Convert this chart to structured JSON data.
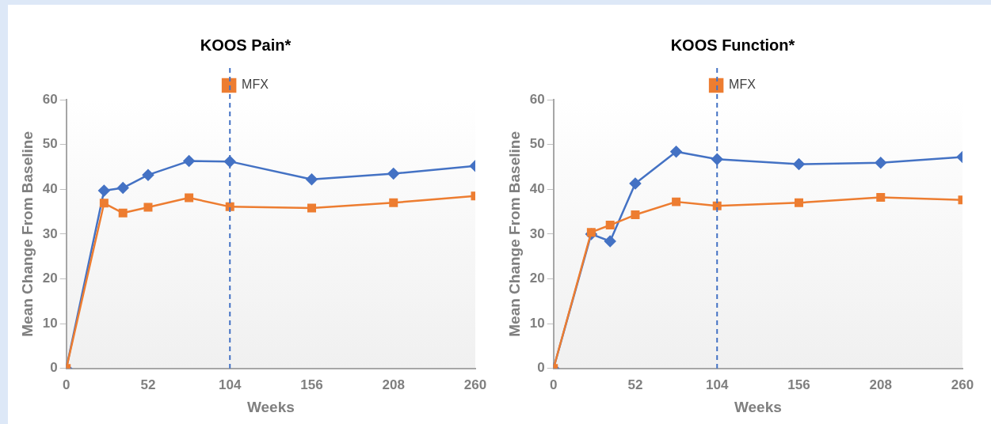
{
  "chart_data": [
    {
      "type": "line",
      "title": "KOOS Pain*",
      "xlabel": "Weeks",
      "ylabel": "Mean Change From Baseline",
      "x": [
        0,
        24,
        36,
        52,
        78,
        104,
        156,
        208,
        260
      ],
      "series": [
        {
          "color": "#4472c4",
          "marker": "diamond",
          "values": [
            0,
            39.7,
            40.3,
            43.2,
            46.3,
            46.2,
            42.2,
            43.5,
            45.2
          ]
        },
        {
          "name": "MFX",
          "color": "#ed7d31",
          "marker": "square",
          "values": [
            0,
            36.9,
            34.7,
            36.0,
            38.1,
            36.1,
            35.8,
            37.0,
            38.5
          ]
        }
      ],
      "xlim": [
        0,
        260
      ],
      "xticks": [
        0,
        52,
        104,
        156,
        208,
        260
      ],
      "ylim": [
        0,
        60
      ],
      "yticks": [
        0,
        10,
        20,
        30,
        40,
        50,
        60
      ],
      "ref_lines": [
        {
          "axis": "x",
          "value": 104,
          "color": "#4472c4",
          "line_style": "dashed"
        }
      ],
      "grid": false,
      "legend": "top",
      "line_style": "solid"
    },
    {
      "type": "line",
      "title": "KOOS Function*",
      "xlabel": "Weeks",
      "ylabel": "Mean Change From Baseline",
      "x": [
        0,
        24,
        36,
        52,
        78,
        104,
        156,
        208,
        260
      ],
      "series": [
        {
          "color": "#4472c4",
          "marker": "diamond",
          "values": [
            0,
            30.0,
            28.4,
            41.3,
            48.4,
            46.7,
            45.6,
            45.9,
            47.2
          ]
        },
        {
          "name": "MFX",
          "color": "#ed7d31",
          "marker": "square",
          "values": [
            0,
            30.4,
            32.0,
            34.3,
            37.2,
            36.3,
            37.0,
            38.2,
            37.6
          ]
        }
      ],
      "xlim": [
        0,
        260
      ],
      "xticks": [
        0,
        52,
        104,
        156,
        208,
        260
      ],
      "ylim": [
        0,
        60
      ],
      "yticks": [
        0,
        10,
        20,
        30,
        40,
        50,
        60
      ],
      "ref_lines": [
        {
          "axis": "x",
          "value": 104,
          "color": "#4472c4",
          "line_style": "dashed"
        }
      ],
      "grid": false,
      "legend": "top",
      "line_style": "solid"
    }
  ]
}
